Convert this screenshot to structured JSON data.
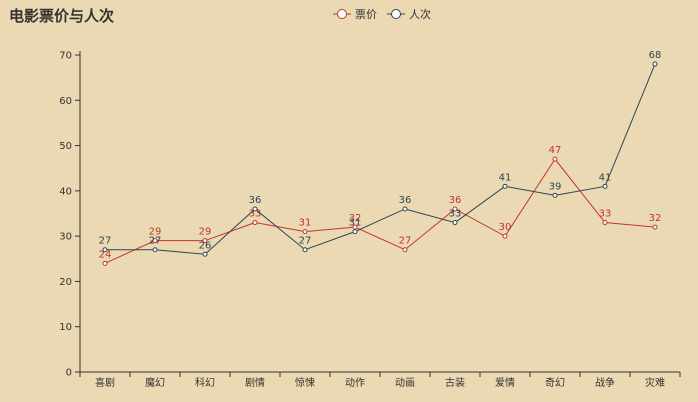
{
  "chart_data": {
    "type": "line",
    "title": "电影票价与人次",
    "categories": [
      "喜剧",
      "魔幻",
      "科幻",
      "剧情",
      "惊悚",
      "动作",
      "动画",
      "古装",
      "爱情",
      "奇幻",
      "战争",
      "灾难"
    ],
    "series": [
      {
        "name": "票价",
        "color": "#c23531",
        "values": [
          24,
          29,
          29,
          33,
          31,
          32,
          27,
          36,
          30,
          47,
          33,
          32
        ]
      },
      {
        "name": "人次",
        "color": "#2f4554",
        "values": [
          27,
          27,
          26,
          36,
          27,
          31,
          36,
          33,
          41,
          39,
          41,
          68
        ]
      }
    ],
    "ylim": [
      0,
      70
    ],
    "yticks": [
      0,
      10,
      20,
      30,
      40,
      50,
      60,
      70
    ],
    "grid": false,
    "legend_position": "top-center",
    "xlabel": "",
    "ylabel": ""
  }
}
